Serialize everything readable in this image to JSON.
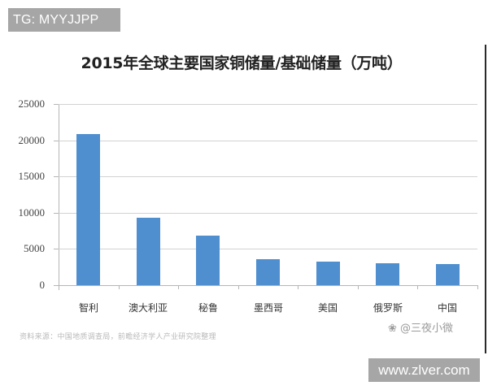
{
  "badges": {
    "top_left": "TG: MYYJJPP",
    "bottom_right": "www.zlver.com"
  },
  "watermark": {
    "icon": "paw-icon",
    "text": "@三夜小微"
  },
  "colors": {
    "bar": "#4f8fd0",
    "grid": "#d2d2d2",
    "badge_bg": "#a6a6a6"
  },
  "chart_data": {
    "type": "bar",
    "title": "2015年全球主要国家铜储量/基础储量（万吨）",
    "xlabel": "",
    "ylabel": "",
    "categories": [
      "智利",
      "澳大利亚",
      "秘鲁",
      "墨西哥",
      "美国",
      "俄罗斯",
      "中国"
    ],
    "values": [
      20900,
      9300,
      6800,
      3600,
      3300,
      3000,
      2900
    ],
    "ylim": [
      0,
      25000
    ],
    "yticks": [
      "0",
      "5000",
      "10000",
      "15000",
      "20000",
      "25000"
    ],
    "grid": true,
    "legend": null,
    "source_note": "资料来源：中国地质调查局，前瞻经济学人产业研究院整理"
  }
}
